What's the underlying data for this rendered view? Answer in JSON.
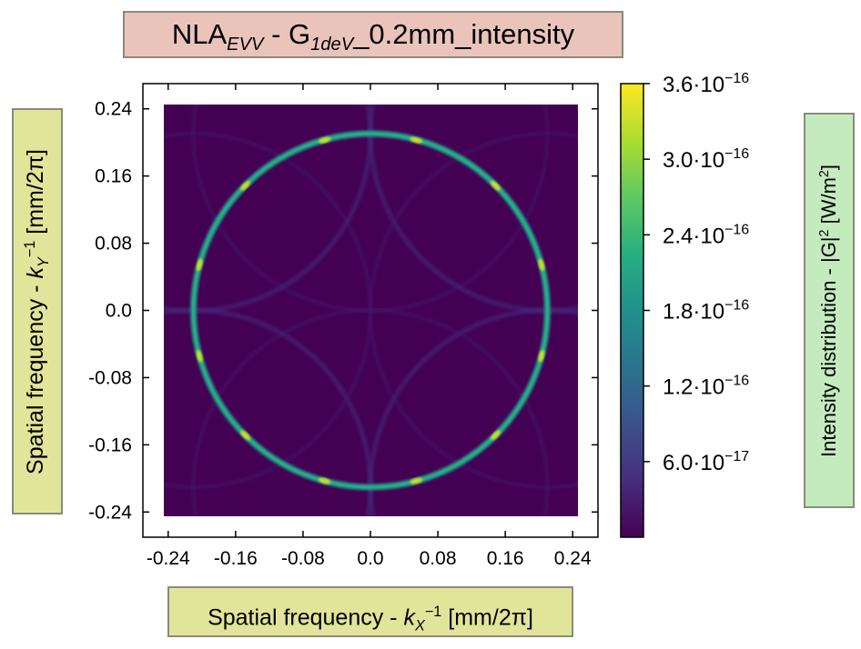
{
  "chart_data": {
    "type": "heatmap",
    "title": {
      "main": "NLA",
      "sub1": "EVV",
      "mid": " - G",
      "sub2": "1deV",
      "tail": "_0.2mm_intensity"
    },
    "xlabel": {
      "pre": "Spatial frequency - ",
      "var": "k",
      "sub": "X",
      "sup": "−1",
      "post": " [mm/2π]"
    },
    "ylabel": {
      "pre": "Spatial frequency - ",
      "var": "k",
      "sub": "Y",
      "sup": "−1",
      "post": " [mm/2π]"
    },
    "colorbar_label": {
      "pre": "Intensity distribution - |G|",
      "sup": "2",
      "post": " [W/m",
      "sup2": "2",
      "post2": "]"
    },
    "xlim": [
      -0.27,
      0.27
    ],
    "ylim": [
      -0.27,
      0.27
    ],
    "x_ticks": [
      -0.24,
      -0.16,
      -0.08,
      0.0,
      0.08,
      0.16,
      0.24
    ],
    "x_tick_labels": [
      "-0.24",
      "-0.16",
      "-0.08",
      "0.0",
      "0.08",
      "0.16",
      "0.24"
    ],
    "y_ticks": [
      0.24,
      0.16,
      0.08,
      0.0,
      -0.08,
      -0.16,
      -0.24
    ],
    "y_tick_labels": [
      "0.24",
      "0.16",
      "0.08",
      "0.0",
      "-0.08",
      "-0.16",
      "-0.24"
    ],
    "data_extent": [
      -0.25,
      0.25
    ],
    "colormap": "viridis",
    "cbar_range": [
      0,
      3.6e-16
    ],
    "cbar_ticks": [
      {
        "value": 3.6e-16,
        "mant": "3.6",
        "exp": "−16"
      },
      {
        "value": 3e-16,
        "mant": "3.0",
        "exp": "−16"
      },
      {
        "value": 2.4e-16,
        "mant": "2.4",
        "exp": "−16"
      },
      {
        "value": 1.8e-16,
        "mant": "1.8",
        "exp": "−16"
      },
      {
        "value": 1.2e-16,
        "mant": "1.2",
        "exp": "−16"
      },
      {
        "value": 6e-17,
        "mant": "6.0",
        "exp": "−17"
      }
    ],
    "main_ring": {
      "radius": 0.21,
      "intensity": 1.9e-16
    },
    "hotspots_deg": [
      15,
      45,
      75,
      105,
      135,
      165,
      195,
      225,
      255,
      285,
      315,
      345
    ],
    "hotspot_intensity": 3.3e-16,
    "side_rings": {
      "radius": 0.21,
      "offset": 0.21,
      "intensity": 3e-17
    }
  },
  "colors": {
    "background_plot": "#440154",
    "box_title": "#eac4bb",
    "box_axis": "#e1e59a",
    "box_colorbar": "#c4ebbd"
  }
}
